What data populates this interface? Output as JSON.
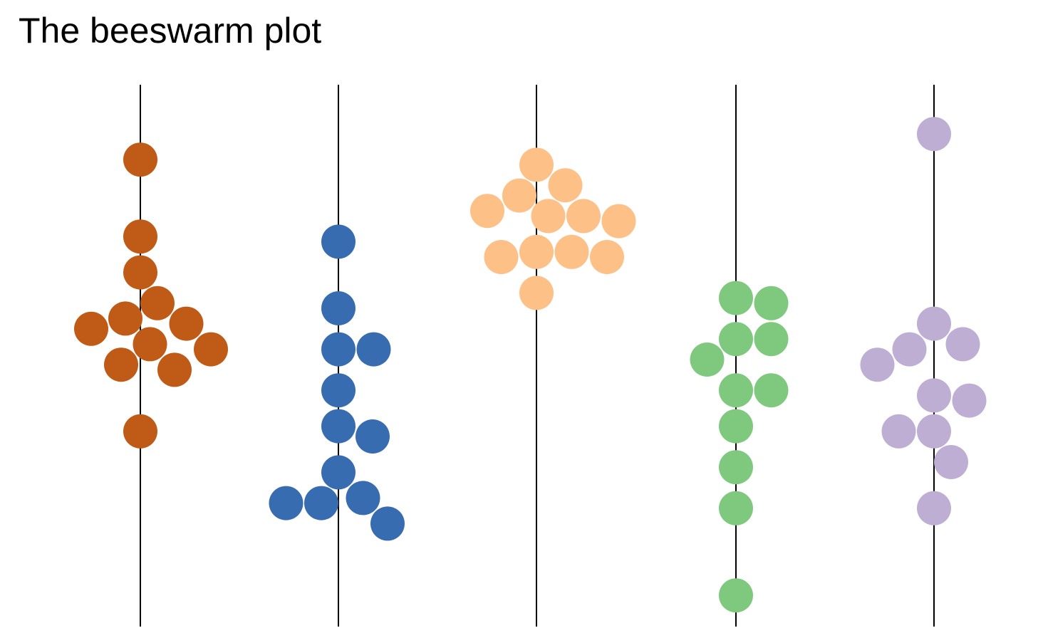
{
  "chart_data": {
    "type": "scatter",
    "subtype": "beeswarm",
    "title": "The beeswarm plot",
    "xlabel": "",
    "ylabel": "",
    "grid": false,
    "legend": "none",
    "ylim": [
      0,
      100
    ],
    "series": [
      {
        "color": "#BF5B17",
        "values": [
          89,
          74,
          67,
          61,
          58,
          57,
          56,
          53,
          52,
          49,
          48,
          36
        ]
      },
      {
        "color": "#386CB0",
        "values": [
          73,
          60,
          52,
          52,
          44,
          37,
          35,
          28,
          23,
          22,
          22,
          18
        ]
      },
      {
        "color": "#FDC086",
        "values": [
          88,
          84,
          82,
          79,
          78,
          78,
          77,
          71,
          71,
          70,
          70,
          63
        ]
      },
      {
        "color": "#7FC97F",
        "values": [
          62,
          61,
          54,
          54,
          50,
          44,
          44,
          37,
          29,
          21,
          4
        ]
      },
      {
        "color": "#BEAED4",
        "values": [
          94,
          57,
          53,
          52,
          49,
          43,
          42,
          36,
          36,
          30,
          21
        ]
      }
    ]
  }
}
